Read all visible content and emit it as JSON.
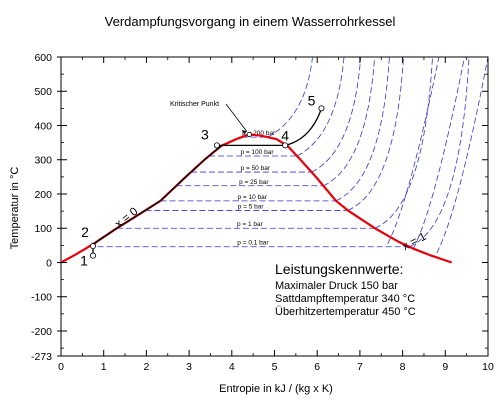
{
  "chart_data": {
    "type": "line",
    "title": "Verdampfungsvorgang in einem Wasserrohrkessel",
    "xlabel": "Entropie in kJ / (kg x K)",
    "ylabel": "Temperatur in °C",
    "xlim": [
      0,
      10
    ],
    "ylim": [
      -273,
      600
    ],
    "x_ticks": [
      0,
      1,
      2,
      3,
      4,
      5,
      6,
      7,
      8,
      9,
      10
    ],
    "x_tick_labels": [
      "0",
      "1",
      "2",
      "3",
      "4",
      "5",
      "6",
      "7",
      "8",
      "9",
      "10"
    ],
    "y_ticks": [
      600,
      500,
      400,
      300,
      200,
      100,
      0,
      -100,
      -200,
      -273
    ],
    "y_tick_labels": [
      "600",
      "500",
      "400",
      "300",
      "200",
      "100",
      "0",
      "-100",
      "-200",
      "-273"
    ],
    "grid": false,
    "saturation_curve": {
      "liquid_line": [
        [
          0,
          0
        ],
        [
          0.3,
          20
        ],
        [
          0.57,
          40
        ],
        [
          0.83,
          60
        ],
        [
          1.31,
          100
        ],
        [
          1.95,
          150
        ],
        [
          2.33,
          180
        ],
        [
          2.92,
          250
        ],
        [
          3.36,
          300
        ],
        [
          3.75,
          340
        ],
        [
          4.1,
          360
        ],
        [
          4.41,
          374
        ]
      ],
      "vapor_line": [
        [
          4.41,
          374
        ],
        [
          4.7,
          370
        ],
        [
          5.05,
          360
        ],
        [
          5.31,
          340
        ],
        [
          5.61,
          300
        ],
        [
          5.97,
          250
        ],
        [
          6.44,
          180
        ],
        [
          6.74,
          150
        ],
        [
          7.35,
          100
        ],
        [
          7.91,
          60
        ],
        [
          8.26,
          40
        ],
        [
          8.67,
          20
        ],
        [
          9.15,
          0
        ]
      ],
      "labels": [
        "x = 0",
        "x = 1"
      ]
    },
    "isobars": [
      {
        "label": "p = 200 bar",
        "T_sat": 366
      },
      {
        "label": "p = 100 bar",
        "T_sat": 311
      },
      {
        "label": "p = 50 bar",
        "T_sat": 264
      },
      {
        "label": "p = 25 bar",
        "T_sat": 224
      },
      {
        "label": "p = 10 bar",
        "T_sat": 180
      },
      {
        "label": "p = 5 bar",
        "T_sat": 152
      },
      {
        "label": "p = 1 bar",
        "T_sat": 100
      },
      {
        "label": "p = 0,1 bar",
        "T_sat": 46
      }
    ],
    "process_points": [
      {
        "label": "1",
        "s": 0.75,
        "T": 20
      },
      {
        "label": "2",
        "s": 0.75,
        "T": 48
      },
      {
        "label": "3",
        "s": 3.65,
        "T": 342
      },
      {
        "label": "4",
        "s": 5.25,
        "T": 342
      },
      {
        "label": "5",
        "s": 6.1,
        "T": 450
      }
    ],
    "annotations": {
      "critical_point": "Kritischer Punkt",
      "box_title": "Leistungskennwerte:",
      "box_lines": [
        "Maximaler Druck 150 bar",
        "Sattdampftemperatur 340 °C",
        "Überhitzertemperatur 450 °C"
      ]
    },
    "colors": {
      "saturation": "#e8000b",
      "isobar": "#3333cc",
      "process": "#000000"
    }
  }
}
